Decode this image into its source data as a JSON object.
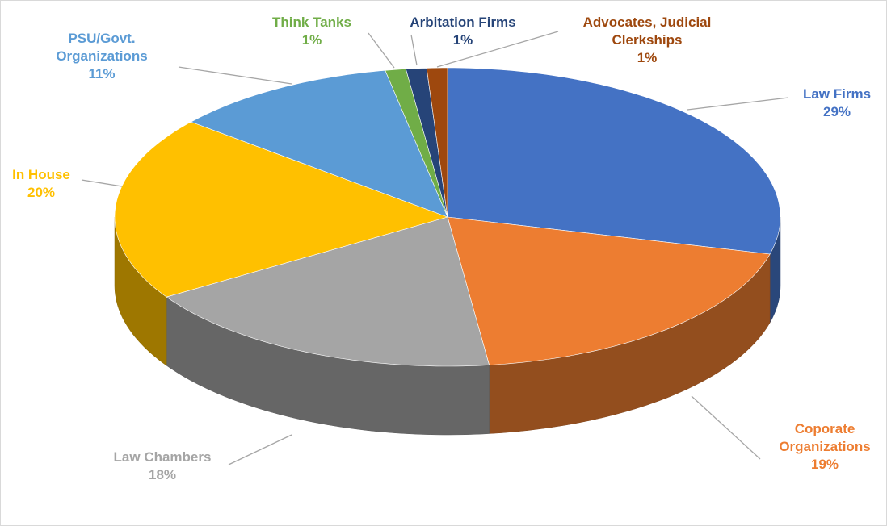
{
  "chart_data": {
    "type": "pie",
    "categories": [
      "Law Firms",
      "Coporate Organizations",
      "Law Chambers",
      "In House",
      "PSU/Govt. Organizations",
      "Think Tanks",
      "Arbitation Firms",
      "Advocates, Judicial Clerkships"
    ],
    "values": [
      29,
      19,
      18,
      20,
      11,
      1,
      1,
      1
    ],
    "value_labels": [
      "29%",
      "19%",
      "18%",
      "20%",
      "11%",
      "1%",
      "1%",
      "1%"
    ],
    "colors": [
      "#4472c4",
      "#ed7d31",
      "#a5a5a5",
      "#ffc000",
      "#5b9bd5",
      "#70ad47",
      "#264478",
      "#9e480e"
    ]
  }
}
